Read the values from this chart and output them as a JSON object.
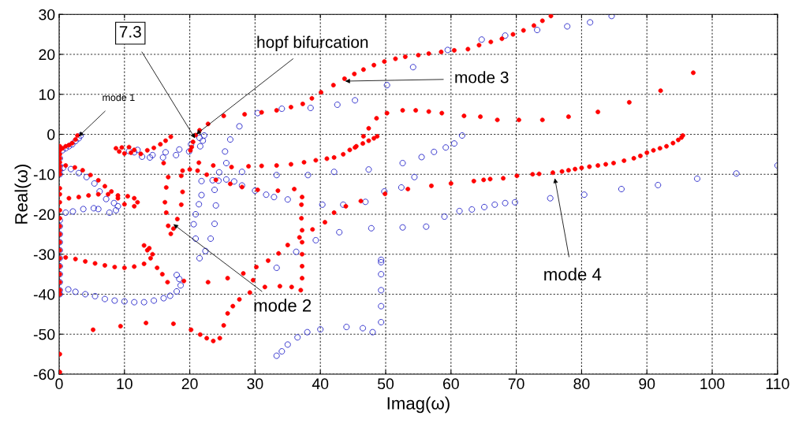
{
  "chart_data": {
    "type": "scatter",
    "xlabel": "Imag(ω)",
    "ylabel": "Real(ω)",
    "xlim": [
      0,
      110
    ],
    "xticks": [
      0,
      10,
      20,
      30,
      40,
      50,
      60,
      70,
      80,
      90,
      100,
      110
    ],
    "ylim": [
      -60,
      30
    ],
    "yticks": [
      -60,
      -50,
      -40,
      -30,
      -20,
      -10,
      0,
      10,
      20,
      30
    ],
    "grid": true,
    "marker": "circle",
    "series": [
      {
        "color": "#ff0000",
        "x": [
          0.1,
          0.1,
          0.1,
          0.1,
          0.1,
          0.1,
          0.1,
          0.1,
          0.1,
          0.1,
          0.1,
          0.1,
          0.1,
          0.1,
          0.1,
          0.1,
          0.1,
          0.1,
          0.1,
          0.1,
          0.1,
          0.1,
          0.1,
          0.1,
          0.1,
          0.5,
          1,
          1.5,
          2,
          2.5,
          2.8,
          8.7,
          9.2,
          10,
          11,
          11.5,
          10.7,
          9.6,
          12.5,
          13.5,
          14.5,
          15.5,
          16.3,
          17.1,
          1,
          2.4,
          3.6,
          4.8,
          6,
          7,
          8,
          9,
          10.5,
          11.5,
          12,
          11.5,
          10,
          9,
          7.5,
          6,
          4.5,
          3,
          1.5,
          1,
          2.5,
          4,
          5.5,
          7,
          8.5,
          10,
          11.5,
          13,
          14,
          13.5,
          13,
          13.8,
          14.3,
          15,
          15.8,
          16.6,
          5.2,
          9.4,
          13.3,
          17.5,
          20.2,
          21.6,
          22.6,
          23.6,
          24.6,
          25.2,
          25.8,
          26.6,
          27.6,
          29.2,
          29.7,
          30.2,
          32,
          33.6,
          35,
          36.8,
          38.8,
          40.7,
          42.1,
          43.9,
          46.2,
          49.9,
          53.4,
          57,
          60,
          63.5,
          65,
          66,
          68,
          70.1,
          72.5,
          73.5,
          75.6,
          77,
          78,
          79,
          80,
          81.2,
          82.5,
          83.7,
          84.9,
          86.5,
          88,
          89,
          90,
          91,
          92,
          93,
          94,
          94.8,
          95.3,
          95.5,
          19.1,
          22.8,
          25.8,
          28.2,
          31.5,
          33.8,
          35.6,
          37,
          37.2,
          37.2,
          37.2,
          37.2,
          37.2,
          37.1,
          37.1,
          37.2,
          36,
          33.5,
          30.4,
          28,
          26.2,
          24,
          22.6,
          21.2,
          20,
          18.9,
          18.7,
          18.9,
          18.7,
          18.1,
          17.5,
          17.1,
          16.7,
          16.4,
          16.2,
          16.4,
          16.7,
          16,
          21.4,
          23.6,
          26.4,
          29,
          31,
          33.3,
          35.5,
          37.5,
          39.3,
          41,
          42.1,
          43.5,
          44.5,
          45.5,
          46.5,
          47.4,
          48.2,
          48.7,
          45.3,
          46.6,
          47.4,
          48.6,
          50.2,
          52.6,
          54.6,
          56.6,
          58.6,
          62,
          64.5,
          67.1,
          70.4,
          74,
          78,
          82.5,
          87.3,
          92.1,
          97.1,
          20.1,
          20.3,
          20.5,
          20.9,
          21.5,
          22.8,
          25.2,
          28.4,
          31,
          33.3,
          35.5,
          37.3,
          38.7,
          40.1,
          42,
          43.7,
          45.2,
          46.6,
          48.2,
          49.8,
          51.5,
          53,
          55,
          56.6,
          58.5,
          60.5,
          62.6,
          64.3,
          66.1,
          67.8,
          69.5,
          71.1,
          72.7,
          74,
          75.3
        ],
        "values": [
          -3,
          -4,
          -5,
          -6,
          -7,
          -8,
          -9,
          -10,
          -13.5,
          -15,
          -17,
          -19,
          -21,
          -23,
          -25,
          -27,
          -29,
          -31,
          -33,
          -35,
          -37,
          -39,
          -40,
          -55,
          -59.5,
          -3.5,
          -3,
          -2.7,
          -2.2,
          -1.3,
          -0.3,
          -3.5,
          -4.3,
          -4.8,
          -4.6,
          -3.9,
          -3.2,
          -3.3,
          -4.9,
          -4,
          -3.4,
          -2.5,
          -1.6,
          -0.6,
          -7.8,
          -8.3,
          -9,
          -10.2,
          -11.5,
          -13,
          -14.3,
          -15.3,
          -15.5,
          -16,
          -17,
          -18,
          -17.5,
          -16,
          -15,
          -15,
          -15.3,
          -15.7,
          -16,
          -30.8,
          -31.2,
          -31.8,
          -32.3,
          -32.8,
          -33.2,
          -33.4,
          -33.1,
          -32.4,
          -31,
          -29,
          -27.8,
          -28.5,
          -30,
          -33.4,
          -35,
          -37,
          -48.9,
          -48,
          -47.2,
          -47.4,
          -48.9,
          -50.1,
          -51,
          -51.7,
          -51,
          -47.8,
          -44.8,
          -43,
          -41.3,
          -39.6,
          -36.5,
          -33.2,
          -31.6,
          -29.8,
          -27.7,
          -25.8,
          -23.8,
          -22,
          -19.6,
          -18,
          -16.7,
          -14.9,
          -13.7,
          -12.9,
          -12.3,
          -11.7,
          -11.4,
          -11.2,
          -11,
          -10.4,
          -10,
          -9.9,
          -9.6,
          -9.3,
          -9,
          -8.7,
          -8.4,
          -8.1,
          -7.8,
          -7.5,
          -7.2,
          -6.6,
          -6,
          -5.4,
          -4.6,
          -4,
          -3.5,
          -3,
          -2.2,
          -1.4,
          -0.8,
          -0.3,
          -36.7,
          -37,
          -36,
          -34.8,
          -38.2,
          -38,
          -38.2,
          -39,
          -36,
          -33,
          -30,
          -27,
          -24,
          -21,
          -17.6,
          -15.7,
          -13.7,
          -14.1,
          -13.9,
          -13.2,
          -12.4,
          -11.4,
          -10.1,
          -9.1,
          -8.8,
          -9.1,
          -10.4,
          -14.4,
          -17.6,
          -21.2,
          -23.6,
          -24.9,
          -22.9,
          -19.6,
          -17,
          -13.3,
          -10.7,
          -7.2,
          -7.1,
          -7.8,
          -8.2,
          -8,
          -7.9,
          -7.8,
          -7.5,
          -7,
          -6.5,
          -6.1,
          -5.8,
          -5,
          -3.9,
          -3,
          -2.3,
          -1.6,
          -1,
          -0.5,
          -3.3,
          -0.5,
          1.5,
          4,
          5.3,
          6,
          6,
          5.7,
          5.3,
          4.6,
          4.4,
          3.6,
          3.6,
          3.6,
          4.4,
          5.6,
          8,
          10.9,
          15.4,
          -4,
          -3.2,
          -1.9,
          -0.2,
          1,
          2.6,
          4.6,
          5,
          5.5,
          6,
          6.8,
          7.6,
          9,
          10.5,
          12.3,
          13.9,
          15.1,
          16.2,
          17.3,
          18.2,
          18.9,
          19.4,
          19.8,
          20.2,
          20.6,
          21,
          21.3,
          22.3,
          23.1,
          23.9,
          25,
          26,
          27.2,
          28.4,
          29.6
        ]
      },
      {
        "color": "#3333cc",
        "x": [
          0.1,
          0.1,
          0.1,
          0.1,
          0.1,
          0.1,
          0.1,
          0.1,
          0.1,
          0.1,
          0.1,
          0.1,
          0.1,
          0.1,
          0.1,
          0.5,
          1,
          1.5,
          2,
          2.5,
          3,
          3.3,
          11.5,
          12.7,
          13.9,
          15.9,
          17.9,
          19.9,
          21.6,
          22,
          22.2,
          21.5,
          20.2,
          18.4,
          16.3,
          14.3,
          12,
          10.7,
          23.5,
          24.5,
          25.6,
          25.4,
          26.2,
          27.6,
          30.4,
          34.1,
          38.5,
          42.6,
          45.3,
          50.2,
          54.2,
          59.5,
          64.7,
          68.3,
          73.2,
          77.8,
          81.3,
          84.6,
          28,
          33.3,
          38.1,
          42.1,
          47.4,
          52.6,
          55.5,
          57.4,
          59.2,
          60.5,
          61.7,
          21.8,
          21.8,
          21.4,
          20.9,
          20.6,
          20.9,
          21.5,
          22.4,
          23.2,
          23.8,
          24,
          23.8,
          24.4,
          25.6,
          26.8,
          28,
          30,
          31.7,
          32.9,
          35,
          40.3,
          43.5,
          46.9,
          49.8,
          52.4,
          54.4,
          33.3,
          36.3,
          39.3,
          42.9,
          47.8,
          52.6,
          56.2,
          59,
          61.3,
          63.2,
          65.1,
          66.7,
          68.3,
          69.8,
          75.2,
          80.4,
          86.1,
          91.7,
          97.7,
          103.7,
          110,
          33.3,
          34.1,
          35,
          36.5,
          38,
          40,
          44,
          46.5,
          48,
          49.3,
          49.3,
          49.3,
          49.3,
          49.3,
          49.3,
          0.6,
          1.8,
          3,
          4.2,
          5.4,
          6.2,
          7.2,
          8.4,
          9,
          8.7,
          7.7,
          6,
          5.3,
          3.7,
          2.1,
          1,
          1.4,
          2.5,
          4,
          5.5,
          7,
          8.5,
          10,
          11.5,
          13,
          14.5,
          16,
          17,
          18,
          18.6,
          18.4,
          18
        ],
        "values": [
          -8,
          -9,
          -10,
          -21.5,
          -23,
          -25,
          -27,
          -29,
          -31,
          -33,
          -35,
          -37,
          -39,
          -40,
          -6,
          -4,
          -3.5,
          -3,
          -2.5,
          -1.7,
          -1,
          -0.3,
          -4.5,
          -5.6,
          -5.8,
          -5.8,
          -5.2,
          -4.3,
          -3,
          -1.6,
          -0.3,
          -0.9,
          -2.5,
          -3.8,
          -4.5,
          -5.2,
          -3.9,
          -4.2,
          -11.5,
          -9.5,
          -7.2,
          -4.3,
          -1.3,
          2,
          5.3,
          6.4,
          6.6,
          7.4,
          8.5,
          12.3,
          16.8,
          21.1,
          23.7,
          24.7,
          26.1,
          27,
          28,
          29.6,
          -9.4,
          -10.2,
          -10.2,
          -9.4,
          -8.8,
          -7.2,
          -5.7,
          -4.4,
          -3.3,
          -2.3,
          -0.3,
          -11.7,
          -15.2,
          -17.5,
          -20,
          -22.5,
          -26.1,
          -31,
          -29.2,
          -26.1,
          -22.4,
          -17.8,
          -13.9,
          -11.6,
          -11.3,
          -11.8,
          -12.8,
          -14.1,
          -15.1,
          -15.7,
          -16.3,
          -17.6,
          -17.6,
          -16.9,
          -14.3,
          -13.3,
          -10.7,
          -33.4,
          -29.4,
          -26.5,
          -24.5,
          -23.5,
          -23.3,
          -23.1,
          -20.6,
          -19.2,
          -18.8,
          -18.2,
          -17.6,
          -17.2,
          -17,
          -16,
          -15.1,
          -13.7,
          -12.7,
          -11.1,
          -9.8,
          -7.8,
          -55.4,
          -54.3,
          -52.6,
          -50.8,
          -49.5,
          -48.8,
          -48.2,
          -48.5,
          -49.5,
          -47,
          -43,
          -39,
          -35,
          -32,
          -31.4,
          -8.4,
          -8.7,
          -9.7,
          -10.7,
          -12.3,
          -14.3,
          -16.2,
          -17.2,
          -18,
          -19,
          -19.6,
          -18.7,
          -18.5,
          -18.7,
          -19.3,
          -19.6,
          -38.8,
          -39.4,
          -40,
          -40.5,
          -41.2,
          -41.6,
          -41.8,
          -42,
          -42,
          -41.6,
          -41,
          -40.4,
          -39.3,
          -37.8,
          -36.2,
          -35.2
        ]
      }
    ],
    "annotations": [
      {
        "text": "7.3",
        "x": 20.8,
        "y": -1
      },
      {
        "text": "hopf bifurcation",
        "x": 21,
        "y": 0
      },
      {
        "text": "mode 1",
        "x": 3,
        "y": -0.5
      },
      {
        "text": "mode 3",
        "x": 43.8,
        "y": 13.3
      },
      {
        "text": "mode 2",
        "x": 17.5,
        "y": -22.5
      },
      {
        "text": "mode 4",
        "x": 75.9,
        "y": -11
      }
    ]
  }
}
